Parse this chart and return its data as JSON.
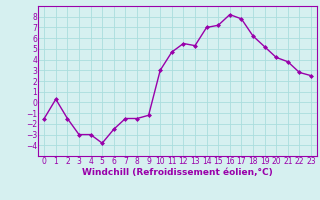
{
  "x": [
    0,
    1,
    2,
    3,
    4,
    5,
    6,
    7,
    8,
    9,
    10,
    11,
    12,
    13,
    14,
    15,
    16,
    17,
    18,
    19,
    20,
    21,
    22,
    23
  ],
  "y": [
    -1.5,
    0.3,
    -1.5,
    -3.0,
    -3.0,
    -3.8,
    -2.5,
    -1.5,
    -1.5,
    -1.2,
    3.0,
    4.7,
    5.5,
    5.3,
    7.0,
    7.2,
    8.2,
    7.8,
    6.2,
    5.2,
    4.2,
    3.8,
    2.8,
    2.5
  ],
  "line_color": "#9900aa",
  "marker": "D",
  "marker_size": 2.0,
  "background_color": "#d6f0f0",
  "grid_color": "#aadddd",
  "xlabel": "Windchill (Refroidissement éolien,°C)",
  "xlim": [
    -0.5,
    23.5
  ],
  "ylim": [
    -5,
    9
  ],
  "yticks": [
    -4,
    -3,
    -2,
    -1,
    0,
    1,
    2,
    3,
    4,
    5,
    6,
    7,
    8
  ],
  "xticks": [
    0,
    1,
    2,
    3,
    4,
    5,
    6,
    7,
    8,
    9,
    10,
    11,
    12,
    13,
    14,
    15,
    16,
    17,
    18,
    19,
    20,
    21,
    22,
    23
  ],
  "tick_label_fontsize": 5.5,
  "xlabel_fontsize": 6.5,
  "line_width": 1.0
}
